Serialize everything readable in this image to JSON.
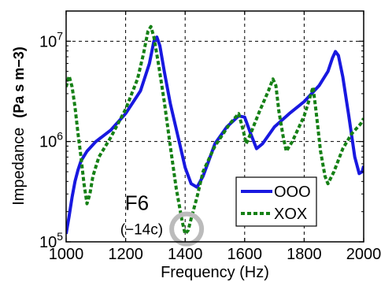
{
  "chart_data": {
    "type": "line",
    "xlabel": "Frequency (Hz)",
    "ylabel_prefix": "Impedance",
    "ylabel_unit": "(Pa s m−3)",
    "xlim": [
      1000,
      2000
    ],
    "ylim": [
      100000,
      20000000
    ],
    "yscale": "log",
    "grid": true,
    "legend_position": "lower-right",
    "x_ticks": [
      {
        "value": 1000,
        "label": "1000"
      },
      {
        "value": 1200,
        "label": "1200"
      },
      {
        "value": 1400,
        "label": "1400"
      },
      {
        "value": 1600,
        "label": "1600"
      },
      {
        "value": 1800,
        "label": "1800"
      },
      {
        "value": 2000,
        "label": "2000"
      }
    ],
    "y_ticks": [
      {
        "value": 100000,
        "base": "10",
        "exp": "5"
      },
      {
        "value": 1000000,
        "base": "10",
        "exp": "6"
      },
      {
        "value": 10000000,
        "base": "10",
        "exp": "7"
      }
    ],
    "annotation": {
      "label": "F6",
      "sublabel": "(−14c)",
      "x": 1405,
      "y": 125000,
      "color": "#bbbbbb"
    },
    "series": [
      {
        "name": "OOO",
        "color": "#1818e0",
        "style": "solid",
        "x": [
          1000,
          1010,
          1020,
          1030,
          1040,
          1050,
          1070,
          1100,
          1150,
          1200,
          1250,
          1280,
          1295,
          1305,
          1315,
          1330,
          1350,
          1380,
          1400,
          1420,
          1440,
          1460,
          1480,
          1500,
          1540,
          1580,
          1600,
          1620,
          1640,
          1660,
          1700,
          1750,
          1800,
          1850,
          1880,
          1895,
          1905,
          1915,
          1930,
          1950,
          1970,
          1985,
          1995,
          2000
        ],
        "y": [
          120000,
          180000,
          280000,
          400000,
          520000,
          640000,
          800000,
          1000000,
          1300000,
          1900000,
          3200000,
          6000000,
          10000000,
          11000000,
          9000000,
          5000000,
          2400000,
          1000000,
          550000,
          380000,
          350000,
          450000,
          650000,
          950000,
          1400000,
          1800000,
          1750000,
          1200000,
          850000,
          950000,
          1400000,
          1900000,
          2500000,
          3600000,
          5000000,
          6800000,
          7900000,
          7200000,
          4400000,
          1800000,
          700000,
          480000,
          500000,
          570000
        ]
      },
      {
        "name": "XOX",
        "color": "#158015",
        "style": "dotted",
        "x": [
          1000,
          1010,
          1020,
          1030,
          1040,
          1050,
          1060,
          1070,
          1080,
          1090,
          1110,
          1150,
          1200,
          1240,
          1260,
          1275,
          1285,
          1295,
          1310,
          1330,
          1350,
          1370,
          1390,
          1400,
          1410,
          1420,
          1440,
          1460,
          1500,
          1550,
          1580,
          1595,
          1605,
          1620,
          1650,
          1680,
          1695,
          1705,
          1715,
          1730,
          1740,
          1760,
          1800,
          1820,
          1830,
          1840,
          1855,
          1870,
          1880,
          1900,
          1930,
          1960,
          1990,
          2000
        ],
        "y": [
          3500000,
          4500000,
          3500000,
          2200000,
          1200000,
          700000,
          380000,
          240000,
          300000,
          450000,
          700000,
          1100000,
          2100000,
          4200000,
          7500000,
          12500000,
          14000000,
          11000000,
          6000000,
          2500000,
          900000,
          340000,
          160000,
          120000,
          130000,
          170000,
          280000,
          500000,
          900000,
          1500000,
          1900000,
          1300000,
          950000,
          1200000,
          2000000,
          3200000,
          4200000,
          3600000,
          2000000,
          1100000,
          800000,
          1000000,
          1800000,
          2800000,
          3500000,
          2000000,
          800000,
          450000,
          380000,
          500000,
          850000,
          1200000,
          1500000,
          1700000
        ]
      }
    ]
  }
}
